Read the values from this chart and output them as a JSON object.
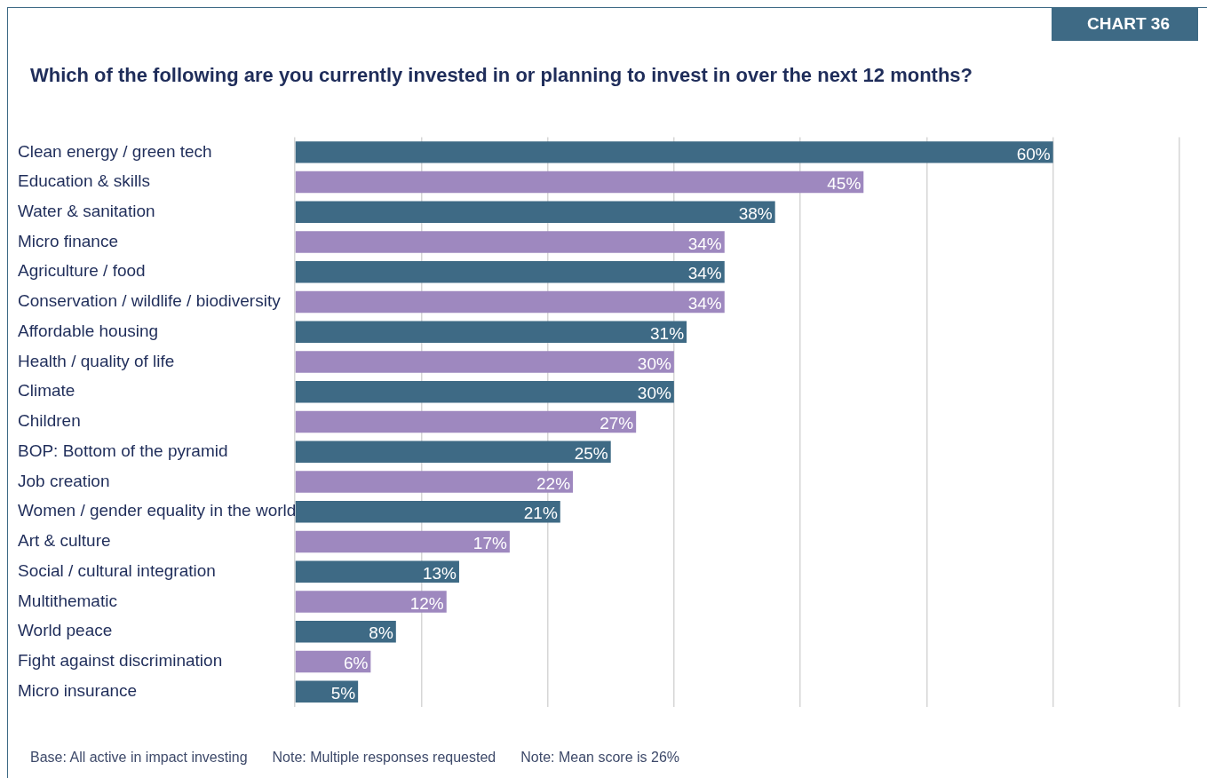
{
  "chart_data": {
    "type": "bar",
    "orientation": "horizontal",
    "title": "Which of the following are you currently invested in or planning to invest in over the next 12 months?",
    "categories": [
      "Clean energy / green tech",
      "Education & skills",
      "Water & sanitation",
      "Micro finance",
      "Agriculture / food",
      "Conservation / wildlife / biodiversity",
      "Affordable housing",
      "Health / quality of life",
      "Climate",
      "Children",
      "BOP: Bottom of the pyramid",
      "Job creation",
      "Women / gender equality in the world",
      "Art & culture",
      "Social / cultural integration",
      "Multithematic",
      "World peace",
      "Fight against discrimination",
      "Micro insurance"
    ],
    "values": [
      60,
      45,
      38,
      34,
      34,
      34,
      31,
      30,
      30,
      27,
      25,
      22,
      21,
      17,
      13,
      12,
      8,
      6,
      5
    ],
    "colors": [
      "#3e6a85",
      "#9e88bf",
      "#3e6a85",
      "#9e88bf",
      "#3e6a85",
      "#9e88bf",
      "#3e6a85",
      "#9e88bf",
      "#3e6a85",
      "#9e88bf",
      "#3e6a85",
      "#9e88bf",
      "#3e6a85",
      "#9e88bf",
      "#3e6a85",
      "#9e88bf",
      "#3e6a85",
      "#9e88bf",
      "#3e6a85"
    ],
    "value_labels": [
      "60%",
      "45%",
      "38%",
      "34%",
      "34%",
      "34%",
      "31%",
      "30%",
      "30%",
      "27%",
      "25%",
      "22%",
      "21%",
      "17%",
      "13%",
      "12%",
      "8%",
      "6%",
      "5%"
    ],
    "xlim": [
      0,
      70
    ],
    "xticks": [
      {
        "value": 0,
        "label": null
      },
      {
        "value": 10,
        "label": null
      },
      {
        "value": 20,
        "label": null
      },
      {
        "value": 30,
        "label": null
      },
      {
        "value": 40,
        "label": null
      },
      {
        "value": 50,
        "label": null
      },
      {
        "value": 60,
        "label": null
      },
      {
        "value": 70,
        "label": null
      }
    ],
    "grid": "x",
    "legend": false,
    "tick_labels": "y",
    "annotations": [
      "CHART 36",
      "Base: All active in impact investing",
      "Note: Multiple responses requested",
      "Note: Mean score is 26%"
    ]
  }
}
